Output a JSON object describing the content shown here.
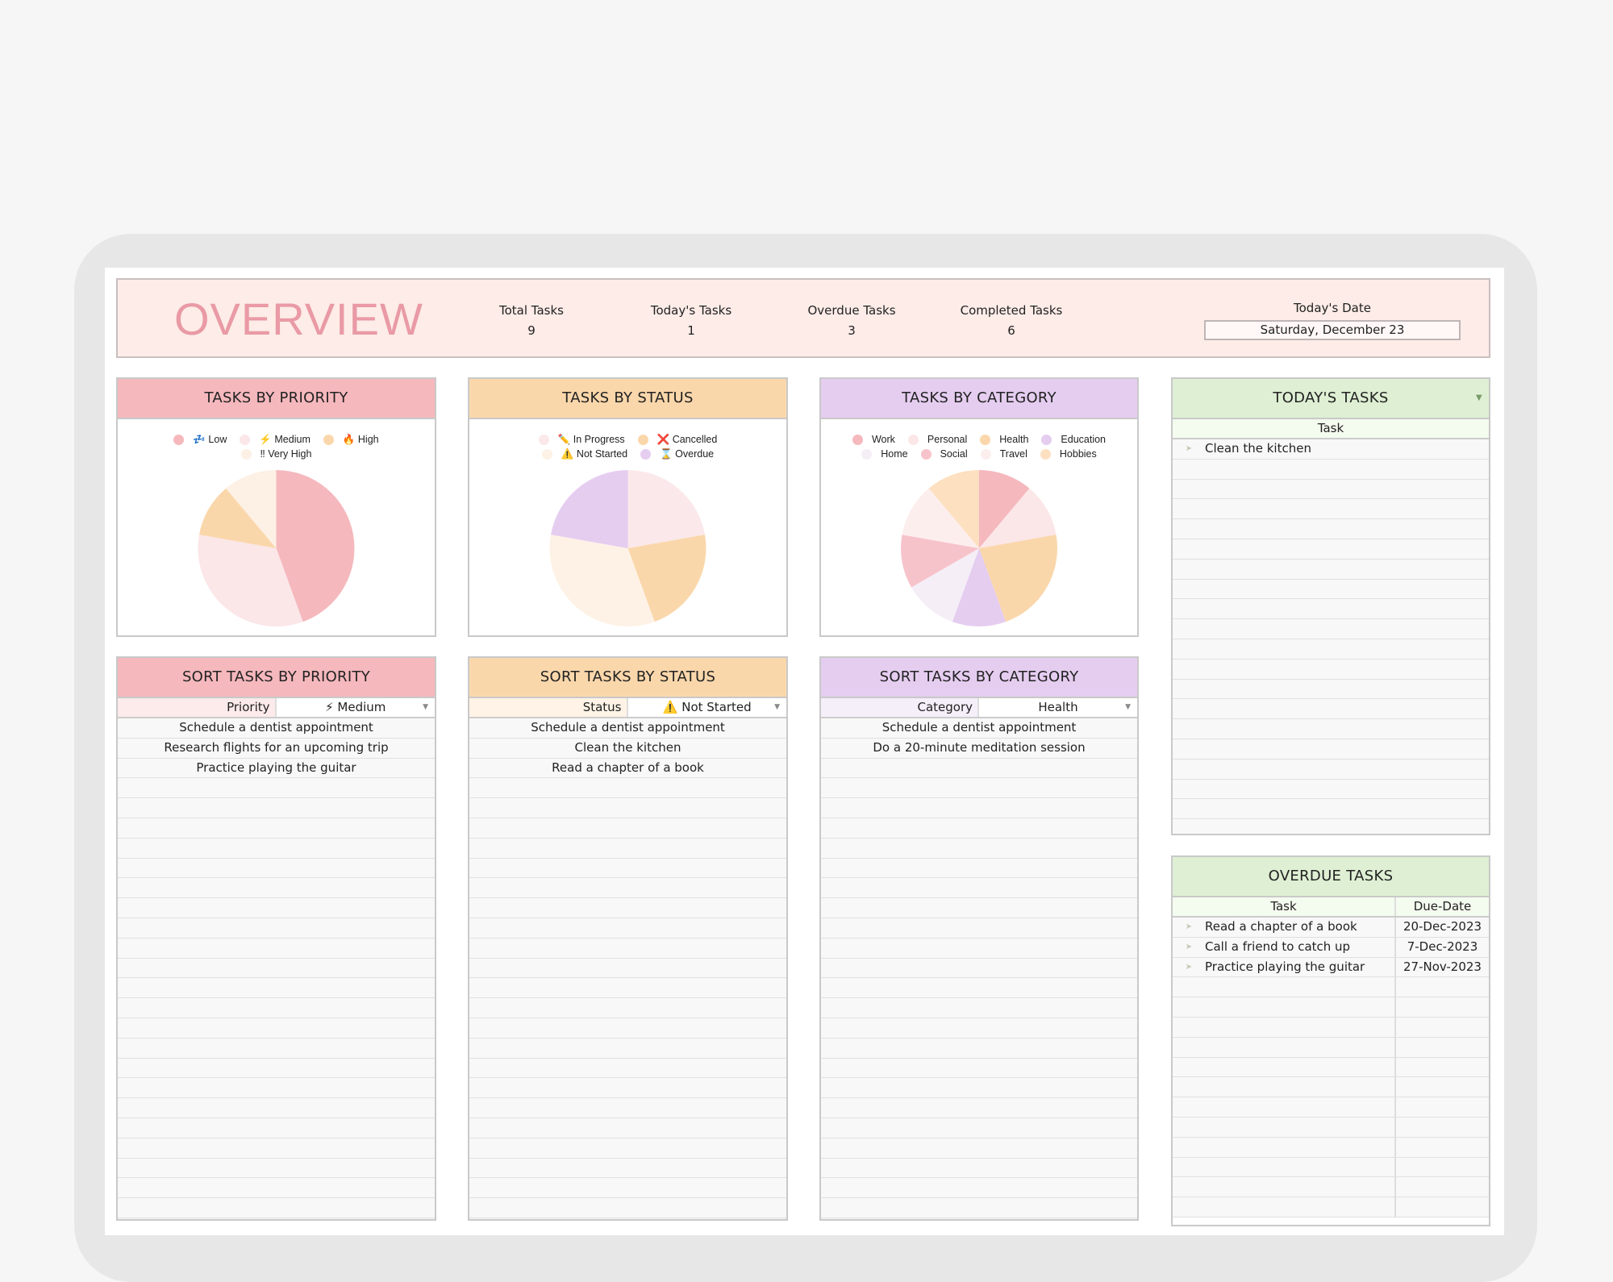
{
  "overview": {
    "title": "OVERVIEW",
    "stats": [
      {
        "label": "Total Tasks",
        "value": "9"
      },
      {
        "label": "Today's Tasks",
        "value": "1"
      },
      {
        "label": "Overdue Tasks",
        "value": "3"
      },
      {
        "label": "Completed Tasks",
        "value": "6"
      }
    ],
    "date_label": "Today's Date",
    "date_value": "Saturday, December 23"
  },
  "colors": {
    "priority": "#f5b8bd",
    "status": "#fad7ab",
    "category": "#e5cdf0",
    "green": "#deefd3",
    "overview_bg": "#fdece7"
  },
  "chart_data": [
    {
      "type": "pie",
      "title": "TASKS BY PRIORITY",
      "legend_placement": "top",
      "categories": [
        "💤 Low",
        "⚡ Medium",
        "🔥 High",
        "‼ Very High"
      ],
      "values": [
        4,
        3,
        1,
        1
      ],
      "colors": [
        "#f5b8bd",
        "#fbe6e8",
        "#fad7ab",
        "#fdf0e4"
      ]
    },
    {
      "type": "pie",
      "title": "TASKS BY STATUS",
      "legend_placement": "top",
      "categories": [
        "✏️ In Progress",
        "❌ Cancelled",
        "⚠️ Not Started",
        "⌛ Overdue"
      ],
      "values": [
        2,
        2,
        3,
        2
      ],
      "colors": [
        "#fbe8ea",
        "#fad7ab",
        "#fef2e6",
        "#e5cdf0"
      ]
    },
    {
      "type": "pie",
      "title": "TASKS BY CATEGORY",
      "legend_placement": "top",
      "categories": [
        "Work",
        "Personal",
        "Health",
        "Education",
        "Home",
        "Social",
        "Travel",
        "Hobbies"
      ],
      "values": [
        1,
        1,
        2,
        1,
        1,
        1,
        1,
        1
      ],
      "colors": [
        "#f5b8bd",
        "#fbe6e8",
        "#fad7ab",
        "#e5cdf0",
        "#f5eef7",
        "#f7c3cb",
        "#fdeeee",
        "#fde0c0"
      ]
    }
  ],
  "sort": [
    {
      "title": "SORT TASKS BY PRIORITY",
      "filter_label": "Priority",
      "filter_value": "⚡ Medium",
      "rows": [
        "Schedule a dentist appointment",
        "Research flights for an upcoming trip",
        "Practice playing the guitar"
      ]
    },
    {
      "title": "SORT TASKS BY STATUS",
      "filter_label": "Status",
      "filter_value": "⚠️ Not Started",
      "rows": [
        "Schedule a dentist appointment",
        "Clean the kitchen",
        "Read a chapter of a book"
      ]
    },
    {
      "title": "SORT TASKS BY CATEGORY",
      "filter_label": "Category",
      "filter_value": "Health",
      "rows": [
        "Schedule a dentist appointment",
        "Do a 20-minute meditation session"
      ]
    }
  ],
  "today": {
    "title": "TODAY'S TASKS",
    "column": "Task",
    "rows": [
      "Clean the kitchen"
    ]
  },
  "overdue": {
    "title": "OVERDUE TASKS",
    "columns": [
      "Task",
      "Due-Date"
    ],
    "rows": [
      {
        "task": "Read a chapter of a book",
        "due": "20-Dec-2023"
      },
      {
        "task": "Call a friend to catch up",
        "due": "7-Dec-2023"
      },
      {
        "task": "Practice playing the guitar",
        "due": "27-Nov-2023"
      }
    ]
  }
}
